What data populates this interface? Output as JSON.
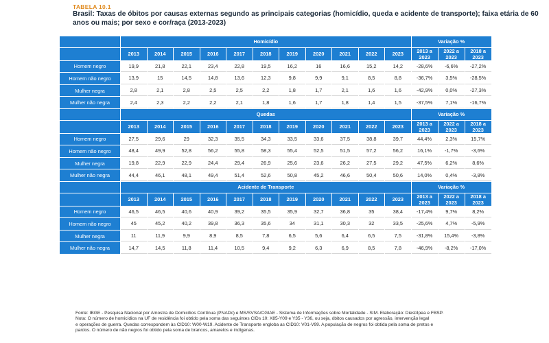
{
  "table_label": "TABELA 10.1",
  "title": "Brasil: Taxas de óbitos por causas externas segundo as principais categorias (homicídio, queda e acidente de transporte); faixa etária de 60 anos ou mais; por sexo e cor/raça (2013-2023)",
  "variation_header": "Variação %",
  "years": [
    "2013",
    "2014",
    "2015",
    "2016",
    "2017",
    "2018",
    "2019",
    "2020",
    "2021",
    "2022",
    "2023"
  ],
  "variation_columns": [
    "2013 a 2023",
    "2022 a 2023",
    "2018 a 2023"
  ],
  "sections": [
    {
      "name": "Homicídio",
      "rows": [
        {
          "label": "Homem negro",
          "values": [
            "19,9",
            "21,8",
            "22,1",
            "23,4",
            "22,8",
            "19,5",
            "16,2",
            "16",
            "16,6",
            "15,2",
            "14,2"
          ],
          "variation": [
            "-28,6%",
            "-6,6%",
            "-27,2%"
          ]
        },
        {
          "label": "Homem não negro",
          "values": [
            "13,9",
            "15",
            "14,5",
            "14,8",
            "13,6",
            "12,3",
            "9,8",
            "9,9",
            "9,1",
            "8,5",
            "8,8"
          ],
          "variation": [
            "-36,7%",
            "3,5%",
            "-28,5%"
          ]
        },
        {
          "label": "Mulher negra",
          "values": [
            "2,8",
            "2,1",
            "2,8",
            "2,5",
            "2,5",
            "2,2",
            "1,8",
            "1,7",
            "2,1",
            "1,6",
            "1,6"
          ],
          "variation": [
            "-42,9%",
            "0,0%",
            "-27,3%"
          ]
        },
        {
          "label": "Mulher não negra",
          "values": [
            "2,4",
            "2,3",
            "2,2",
            "2,2",
            "2,1",
            "1,8",
            "1,6",
            "1,7",
            "1,8",
            "1,4",
            "1,5"
          ],
          "variation": [
            "-37,5%",
            "7,1%",
            "-16,7%"
          ]
        }
      ]
    },
    {
      "name": "Quedas",
      "rows": [
        {
          "label": "Homem negro",
          "values": [
            "27,5",
            "29,6",
            "29",
            "32,3",
            "35,5",
            "34,3",
            "33,5",
            "33,6",
            "37,5",
            "38,8",
            "39,7"
          ],
          "variation": [
            "44,4%",
            "2,3%",
            "15,7%"
          ]
        },
        {
          "label": "Homem não negro",
          "values": [
            "48,4",
            "49,9",
            "52,8",
            "56,2",
            "55,8",
            "58,3",
            "55,4",
            "52,5",
            "51,5",
            "57,2",
            "56,2"
          ],
          "variation": [
            "16,1%",
            "-1,7%",
            "-3,6%"
          ]
        },
        {
          "label": "Mulher negra",
          "values": [
            "19,8",
            "22,9",
            "22,9",
            "24,4",
            "29,4",
            "26,9",
            "25,6",
            "23,6",
            "26,2",
            "27,5",
            "29,2"
          ],
          "variation": [
            "47,5%",
            "6,2%",
            "8,6%"
          ]
        },
        {
          "label": "Mulher não negra",
          "values": [
            "44,4",
            "46,1",
            "48,1",
            "49,4",
            "51,4",
            "52,6",
            "50,8",
            "45,2",
            "46,6",
            "50,4",
            "50,6"
          ],
          "variation": [
            "14,0%",
            "0,4%",
            "-3,8%"
          ]
        }
      ]
    },
    {
      "name": "Acidente de Transporte",
      "rows": [
        {
          "label": "Homem negro",
          "values": [
            "46,5",
            "46,5",
            "40,6",
            "40,9",
            "39,2",
            "35,5",
            "35,9",
            "32,7",
            "36,8",
            "35",
            "38,4"
          ],
          "variation": [
            "-17,4%",
            "9,7%",
            "8,2%"
          ]
        },
        {
          "label": "Homem não negro",
          "values": [
            "45",
            "45,2",
            "40,2",
            "39,8",
            "36,3",
            "35,6",
            "34",
            "31,1",
            "30,3",
            "32",
            "33,5"
          ],
          "variation": [
            "-25,6%",
            "4,7%",
            "-5,9%"
          ]
        },
        {
          "label": "Mulher negra",
          "values": [
            "11",
            "11,9",
            "9,9",
            "8,9",
            "8,5",
            "7,8",
            "6,5",
            "5,6",
            "6,4",
            "6,5",
            "7,5"
          ],
          "variation": [
            "-31,8%",
            "15,4%",
            "-3,8%"
          ]
        },
        {
          "label": "Mulher não negra",
          "values": [
            "14,7",
            "14,5",
            "11,8",
            "11,4",
            "10,5",
            "9,4",
            "9,2",
            "6,3",
            "6,9",
            "8,5",
            "7,8"
          ],
          "variation": [
            "-46,9%",
            "-8,2%",
            "-17,0%"
          ]
        }
      ]
    }
  ],
  "footer": [
    "Fonte: IBGE - Pesquisa Nacional por Amostra de Domicílios Contínua (PNADc) e MS/SVSA/CGIAE - Sistema de Informações sobre Mortalidade - SIM. Elaboração: Diest/Ipea e FBSP.",
    "Nota: O número de homicídios na UF de residência foi obtido pela soma das seguintes CIDs 10: X85-Y09 e Y35 - Y36, ou seja, óbitos causados por agressão, intervenção legal",
    "e operações de guerra. Quedas correspondem às CID10: W00-W19. Acidente de Transporte engloba as CID10: V01-V99. A população de negros foi obtida pela soma de pretos e",
    "pardos. O número de não negros foi obtido pela soma de brancos, amarelos e indígenas."
  ]
}
